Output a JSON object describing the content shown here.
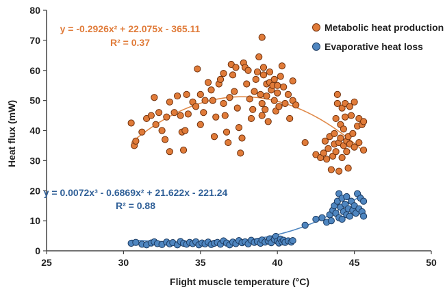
{
  "chart_data": {
    "type": "scatter",
    "xlabel": "Flight muscle temperature (°C)",
    "ylabel": "Heat flux (mW)",
    "xlim": [
      25,
      50
    ],
    "ylim": [
      0,
      80
    ],
    "xticks": [
      "25",
      "30",
      "35",
      "40",
      "45",
      "50"
    ],
    "yticks": [
      "0",
      "10",
      "20",
      "30",
      "40",
      "50",
      "60",
      "70",
      "80"
    ],
    "grid": false,
    "legend_position": "top-right",
    "colors": {
      "metabolic": "#e07b39",
      "metabolic_dark": "#a84e1a",
      "evaporative": "#4f86c0",
      "evaporative_dark": "#234f80",
      "metabolic_fit": "#e08a4a",
      "evaporative_fit": "#4f86c0"
    },
    "series": [
      {
        "name": "Metabolic heat production",
        "fit": {
          "equation_line1": "y = -0.2926x² + 22.075x - 365.11",
          "equation_line2": "R² = 0.37",
          "coefficients": [
            -0.2926,
            22.075,
            -365.11
          ],
          "x_range": [
            30.5,
            45.5
          ]
        },
        "points": [
          [
            30.5,
            42.5
          ],
          [
            30.7,
            35.0
          ],
          [
            30.8,
            36.5
          ],
          [
            31.2,
            39.5
          ],
          [
            31.5,
            44.0
          ],
          [
            31.8,
            45.0
          ],
          [
            32.0,
            51.0
          ],
          [
            32.1,
            42.0
          ],
          [
            32.3,
            46.0
          ],
          [
            32.5,
            40.0
          ],
          [
            32.7,
            37.0
          ],
          [
            32.8,
            44.5
          ],
          [
            33.0,
            49.5
          ],
          [
            33.0,
            33.0
          ],
          [
            33.3,
            46.0
          ],
          [
            33.5,
            51.5
          ],
          [
            33.7,
            45.0
          ],
          [
            33.8,
            39.5
          ],
          [
            33.9,
            33.5
          ],
          [
            34.0,
            40.0
          ],
          [
            34.1,
            52.0
          ],
          [
            34.2,
            45.5
          ],
          [
            34.5,
            49.5
          ],
          [
            34.7,
            48.0
          ],
          [
            34.8,
            60.5
          ],
          [
            35.0,
            52.0
          ],
          [
            35.0,
            42.0
          ],
          [
            35.2,
            46.0
          ],
          [
            35.3,
            50.0
          ],
          [
            35.5,
            56.0
          ],
          [
            35.7,
            53.5
          ],
          [
            35.8,
            50.0
          ],
          [
            35.9,
            38.0
          ],
          [
            36.0,
            44.5
          ],
          [
            36.2,
            55.5
          ],
          [
            36.3,
            57.0
          ],
          [
            36.5,
            59.0
          ],
          [
            36.5,
            49.0
          ],
          [
            36.6,
            45.0
          ],
          [
            36.7,
            39.5
          ],
          [
            36.8,
            36.0
          ],
          [
            36.9,
            51.0
          ],
          [
            37.0,
            62.0
          ],
          [
            37.1,
            58.5
          ],
          [
            37.2,
            53.0
          ],
          [
            37.3,
            61.0
          ],
          [
            37.4,
            47.5
          ],
          [
            37.5,
            41.0
          ],
          [
            37.6,
            32.5
          ],
          [
            37.7,
            37.5
          ],
          [
            37.8,
            62.5
          ],
          [
            37.9,
            61.0
          ],
          [
            38.0,
            55.5
          ],
          [
            38.1,
            60.0
          ],
          [
            38.2,
            50.5
          ],
          [
            38.3,
            44.0
          ],
          [
            38.4,
            47.0
          ],
          [
            38.5,
            53.0
          ],
          [
            38.6,
            57.0
          ],
          [
            38.7,
            59.5
          ],
          [
            38.8,
            64.5
          ],
          [
            38.9,
            52.0
          ],
          [
            39.0,
            71.0
          ],
          [
            39.0,
            49.0
          ],
          [
            39.0,
            45.0
          ],
          [
            39.1,
            58.5
          ],
          [
            39.1,
            61.0
          ],
          [
            39.2,
            47.0
          ],
          [
            39.3,
            55.5
          ],
          [
            39.3,
            51.5
          ],
          [
            39.4,
            43.0
          ],
          [
            39.5,
            56.0
          ],
          [
            39.5,
            59.5
          ],
          [
            39.6,
            53.5
          ],
          [
            39.7,
            55.0
          ],
          [
            39.8,
            57.0
          ],
          [
            39.8,
            50.0
          ],
          [
            39.9,
            46.5
          ],
          [
            40.0,
            55.0
          ],
          [
            40.0,
            52.5
          ],
          [
            40.1,
            48.0
          ],
          [
            40.2,
            58.0
          ],
          [
            40.3,
            61.5
          ],
          [
            40.4,
            54.5
          ],
          [
            40.5,
            49.0
          ],
          [
            40.7,
            52.0
          ],
          [
            40.8,
            44.0
          ],
          [
            41.0,
            56.5
          ],
          [
            41.0,
            50.0
          ],
          [
            41.2,
            48.5
          ],
          [
            41.8,
            36.0
          ],
          [
            42.5,
            32.0
          ],
          [
            42.8,
            31.0
          ],
          [
            43.0,
            32.5
          ],
          [
            43.1,
            36.5
          ],
          [
            43.2,
            30.5
          ],
          [
            43.3,
            34.0
          ],
          [
            43.4,
            38.0
          ],
          [
            43.5,
            27.0
          ],
          [
            43.6,
            31.5
          ],
          [
            43.7,
            35.5
          ],
          [
            43.7,
            39.0
          ],
          [
            43.8,
            33.0
          ],
          [
            43.8,
            44.0
          ],
          [
            43.9,
            52.0
          ],
          [
            43.9,
            49.0
          ],
          [
            44.0,
            36.0
          ],
          [
            44.0,
            26.5
          ],
          [
            44.1,
            42.0
          ],
          [
            44.1,
            37.5
          ],
          [
            44.2,
            47.5
          ],
          [
            44.2,
            31.0
          ],
          [
            44.3,
            35.0
          ],
          [
            44.3,
            40.5
          ],
          [
            44.4,
            44.5
          ],
          [
            44.4,
            49.0
          ],
          [
            44.5,
            33.0
          ],
          [
            44.5,
            36.5
          ],
          [
            44.6,
            38.0
          ],
          [
            44.6,
            27.5
          ],
          [
            44.7,
            48.0
          ],
          [
            44.7,
            35.5
          ],
          [
            44.8,
            45.0
          ],
          [
            44.9,
            39.0
          ],
          [
            45.0,
            49.5
          ],
          [
            45.0,
            34.5
          ],
          [
            45.2,
            41.5
          ],
          [
            45.3,
            36.0
          ],
          [
            45.3,
            44.0
          ],
          [
            45.5,
            42.0
          ],
          [
            45.6,
            33.5
          ],
          [
            45.6,
            43.0
          ]
        ]
      },
      {
        "name": "Evaporative heat loss",
        "fit": {
          "equation_line1": "y = 0.0072x³ - 0.6869x² + 21.622x - 221.24",
          "equation_line2": "R² = 0.88",
          "coefficients": [
            0.0072,
            -0.6869,
            21.622,
            -221.24
          ],
          "x_range": [
            30.5,
            45.5
          ]
        },
        "points": [
          [
            30.5,
            2.5
          ],
          [
            30.8,
            2.8
          ],
          [
            31.2,
            2.2
          ],
          [
            31.5,
            2.0
          ],
          [
            31.8,
            2.6
          ],
          [
            32.0,
            3.0
          ],
          [
            32.2,
            2.4
          ],
          [
            32.5,
            2.1
          ],
          [
            32.8,
            2.9
          ],
          [
            33.0,
            2.3
          ],
          [
            33.2,
            2.7
          ],
          [
            33.5,
            2.0
          ],
          [
            33.7,
            3.1
          ],
          [
            33.9,
            2.5
          ],
          [
            34.1,
            2.2
          ],
          [
            34.3,
            2.8
          ],
          [
            34.5,
            2.4
          ],
          [
            34.7,
            3.0
          ],
          [
            34.9,
            2.0
          ],
          [
            35.1,
            2.6
          ],
          [
            35.3,
            2.3
          ],
          [
            35.5,
            2.9
          ],
          [
            35.7,
            2.1
          ],
          [
            35.9,
            2.5
          ],
          [
            36.1,
            2.8
          ],
          [
            36.3,
            2.2
          ],
          [
            36.5,
            3.3
          ],
          [
            36.7,
            2.6
          ],
          [
            36.9,
            2.0
          ],
          [
            37.1,
            2.9
          ],
          [
            37.3,
            2.4
          ],
          [
            37.5,
            3.4
          ],
          [
            37.7,
            2.7
          ],
          [
            37.9,
            3.0
          ],
          [
            38.1,
            2.3
          ],
          [
            38.3,
            3.5
          ],
          [
            38.5,
            2.8
          ],
          [
            38.7,
            3.1
          ],
          [
            38.9,
            2.5
          ],
          [
            39.0,
            3.6
          ],
          [
            39.2,
            2.9
          ],
          [
            39.4,
            3.3
          ],
          [
            39.5,
            4.0
          ],
          [
            39.6,
            2.7
          ],
          [
            39.8,
            3.8
          ],
          [
            39.9,
            4.8
          ],
          [
            40.0,
            3.2
          ],
          [
            40.1,
            2.6
          ],
          [
            40.2,
            3.9
          ],
          [
            40.3,
            3.0
          ],
          [
            40.4,
            3.5
          ],
          [
            40.5,
            2.8
          ],
          [
            40.7,
            3.3
          ],
          [
            40.9,
            2.9
          ],
          [
            41.0,
            3.4
          ],
          [
            41.8,
            8.5
          ],
          [
            42.5,
            10.5
          ],
          [
            42.9,
            11.0
          ],
          [
            43.2,
            9.5
          ],
          [
            43.4,
            12.0
          ],
          [
            43.5,
            10.0
          ],
          [
            43.6,
            13.5
          ],
          [
            43.7,
            15.0
          ],
          [
            43.8,
            12.5
          ],
          [
            43.9,
            16.5
          ],
          [
            44.0,
            19.0
          ],
          [
            44.0,
            11.0
          ],
          [
            44.1,
            14.5
          ],
          [
            44.2,
            17.5
          ],
          [
            44.2,
            10.5
          ],
          [
            44.3,
            13.0
          ],
          [
            44.4,
            15.5
          ],
          [
            44.5,
            12.0
          ],
          [
            44.5,
            18.0
          ],
          [
            44.6,
            14.0
          ],
          [
            44.7,
            11.5
          ],
          [
            44.8,
            16.5
          ],
          [
            44.9,
            13.5
          ],
          [
            45.0,
            15.0
          ],
          [
            45.1,
            12.5
          ],
          [
            45.2,
            19.0
          ],
          [
            45.3,
            14.0
          ],
          [
            45.4,
            17.5
          ],
          [
            45.5,
            13.0
          ],
          [
            45.6,
            11.5
          ],
          [
            45.6,
            16.5
          ]
        ]
      }
    ]
  }
}
